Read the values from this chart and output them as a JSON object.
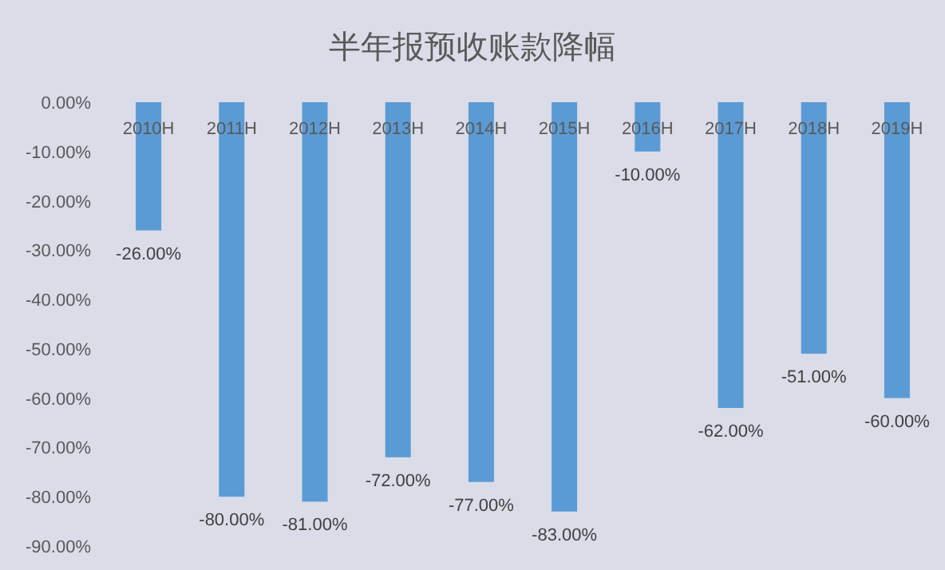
{
  "chart_data": {
    "type": "bar",
    "title": "半年报预收账款降幅",
    "categories": [
      "2010H",
      "2011H",
      "2012H",
      "2013H",
      "2014H",
      "2015H",
      "2016H",
      "2017H",
      "2018H",
      "2019H"
    ],
    "values": [
      -26,
      -80,
      -81,
      -72,
      -77,
      -83,
      -10,
      -62,
      -51,
      -60
    ],
    "value_labels": [
      "-26.00%",
      "-80.00%",
      "-81.00%",
      "-72.00%",
      "-77.00%",
      "-83.00%",
      "-10.00%",
      "-62.00%",
      "-51.00%",
      "-60.00%"
    ],
    "color": "#5b9bd5",
    "ylim": [
      -90,
      0
    ],
    "yticks": [
      {
        "value": 0,
        "label": "0.00%"
      },
      {
        "value": -10,
        "label": "-10.00%"
      },
      {
        "value": -20,
        "label": "-20.00%"
      },
      {
        "value": -30,
        "label": "-30.00%"
      },
      {
        "value": -40,
        "label": "-40.00%"
      },
      {
        "value": -50,
        "label": "-50.00%"
      },
      {
        "value": -60,
        "label": "-60.00%"
      },
      {
        "value": -70,
        "label": "-70.00%"
      },
      {
        "value": -80,
        "label": "-80.00%"
      },
      {
        "value": -90,
        "label": "-90.00%"
      }
    ],
    "grid": false
  }
}
